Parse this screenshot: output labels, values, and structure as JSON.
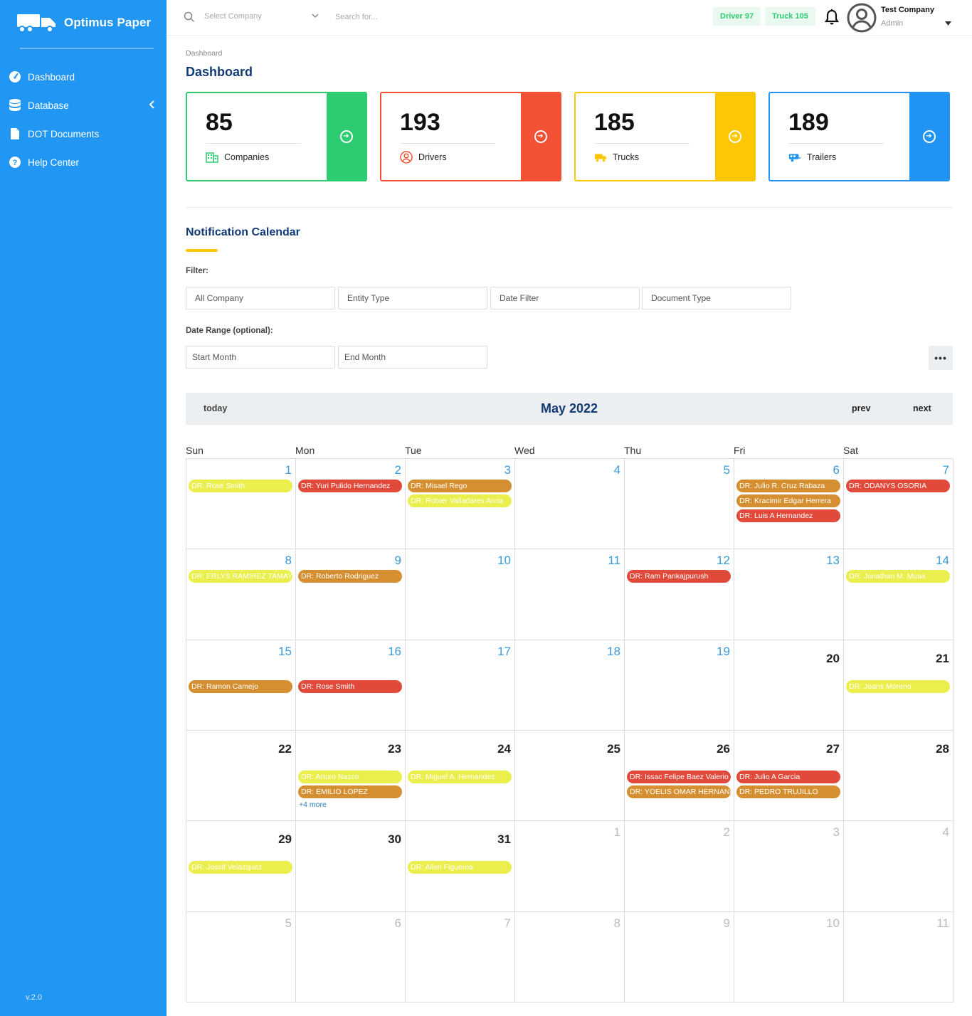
{
  "sidebar": {
    "brand": "Optimus Paper",
    "items": [
      {
        "label": "Dashboard",
        "icon": "gauge-icon"
      },
      {
        "label": "Database",
        "icon": "database-icon"
      },
      {
        "label": "DOT Documents",
        "icon": "document-icon"
      },
      {
        "label": "Help Center",
        "icon": "question-circle-icon"
      }
    ],
    "version": "v.2.0"
  },
  "topbar": {
    "select_company_placeholder": "Select Company",
    "search_placeholder": "Search for...",
    "driver_badge": "Driver 97",
    "truck_badge": "Truck 105",
    "user_name": "Test Company",
    "user_role": "Admin"
  },
  "breadcrumb": "Dashboard",
  "page_title": "Dashboard",
  "stats": [
    {
      "value": "85",
      "label": "Companies",
      "color": "#2ecc71",
      "icon": "building-icon"
    },
    {
      "value": "193",
      "label": "Drivers",
      "color": "#f35134",
      "icon": "user-circle-icon"
    },
    {
      "value": "185",
      "label": "Trucks",
      "color": "#fec703",
      "icon": "truck-icon"
    },
    {
      "value": "189",
      "label": "Trailers",
      "color": "#2193f3",
      "icon": "trailer-icon"
    }
  ],
  "calendar_section": {
    "title": "Notification Calendar",
    "filter_label": "Filter:",
    "filters": [
      "All Company",
      "Entity Type",
      "Date Filter",
      "Document Type"
    ],
    "range_label": "Date Range (optional):",
    "start_month_placeholder": "Start Month",
    "end_month_placeholder": "End Month"
  },
  "calendar": {
    "today_label": "today",
    "title": "May 2022",
    "prev_label": "prev",
    "next_label": "next",
    "day_headers": [
      "Sun",
      "Mon",
      "Tue",
      "Wed",
      "Thu",
      "Fri",
      "Sat"
    ],
    "weeks": [
      [
        {
          "day": "1",
          "style": "blue",
          "events": [
            {
              "text": "DR: Rose Smith",
              "color": "yellow"
            }
          ]
        },
        {
          "day": "2",
          "style": "blue",
          "events": [
            {
              "text": "DR: Yuri Pulido Hernandez",
              "color": "red"
            }
          ]
        },
        {
          "day": "3",
          "style": "blue",
          "events": [
            {
              "text": "DR: Misael Rego",
              "color": "orange"
            },
            {
              "text": "DR: Robier Valladares Arcia",
              "color": "yellow"
            }
          ]
        },
        {
          "day": "4",
          "style": "blue",
          "events": []
        },
        {
          "day": "5",
          "style": "blue",
          "events": []
        },
        {
          "day": "6",
          "style": "blue",
          "events": [
            {
              "text": "DR: Julio R. Cruz Rabaza",
              "color": "orange"
            },
            {
              "text": "DR: Kracimir Edgar Herrera",
              "color": "orange"
            },
            {
              "text": "DR: Luis A Hernandez",
              "color": "red"
            }
          ]
        },
        {
          "day": "7",
          "style": "blue",
          "events": [
            {
              "text": "DR: ODANYS OSORIA",
              "color": "red"
            }
          ]
        }
      ],
      [
        {
          "day": "8",
          "style": "blue",
          "events": [
            {
              "text": "DR: ERLYS RAMIREZ TAMAYO",
              "color": "yellow"
            }
          ]
        },
        {
          "day": "9",
          "style": "blue",
          "events": [
            {
              "text": "DR: Roberto Rodriguez",
              "color": "orange"
            }
          ]
        },
        {
          "day": "10",
          "style": "blue",
          "events": []
        },
        {
          "day": "11",
          "style": "blue",
          "events": []
        },
        {
          "day": "12",
          "style": "blue",
          "events": [
            {
              "text": "DR: Ram Pankajpurush",
              "color": "red"
            }
          ]
        },
        {
          "day": "13",
          "style": "blue",
          "events": []
        },
        {
          "day": "14",
          "style": "blue",
          "events": [
            {
              "text": "DR: Jonathan M. Musa",
              "color": "yellow"
            }
          ]
        }
      ],
      [
        {
          "day": "15",
          "style": "blue",
          "events": [
            {
              "text": "DR: Ramon Camejo",
              "color": "orange"
            }
          ]
        },
        {
          "day": "16",
          "style": "blue",
          "events": [
            {
              "text": "DR: Rose Smith",
              "color": "red"
            }
          ]
        },
        {
          "day": "17",
          "style": "blue",
          "events": []
        },
        {
          "day": "18",
          "style": "blue",
          "events": []
        },
        {
          "day": "19",
          "style": "blue",
          "events": []
        },
        {
          "day": "20",
          "style": "dark",
          "events": []
        },
        {
          "day": "21",
          "style": "dark",
          "events": [
            {
              "text": "DR: Joans Moreno",
              "color": "yellow"
            }
          ]
        }
      ],
      [
        {
          "day": "22",
          "style": "dark",
          "events": []
        },
        {
          "day": "23",
          "style": "dark",
          "events": [
            {
              "text": "DR: Arturo Nazco",
              "color": "yellow"
            },
            {
              "text": "DR: EMILIO LOPEZ",
              "color": "orange"
            }
          ],
          "more": "+4 more"
        },
        {
          "day": "24",
          "style": "dark",
          "events": [
            {
              "text": "DR: Miguel A. Hernandez",
              "color": "yellow"
            }
          ]
        },
        {
          "day": "25",
          "style": "dark",
          "events": []
        },
        {
          "day": "26",
          "style": "dark",
          "events": [
            {
              "text": "DR: Issac Felipe Baez Valerio",
              "color": "red"
            },
            {
              "text": "DR: YOELIS OMAR HERNANDEZ",
              "color": "orange"
            }
          ]
        },
        {
          "day": "27",
          "style": "dark",
          "events": [
            {
              "text": "DR: Julio A Garcia",
              "color": "red"
            },
            {
              "text": "DR: PEDRO TRUJILLO",
              "color": "orange"
            }
          ]
        },
        {
          "day": "28",
          "style": "dark",
          "events": []
        }
      ],
      [
        {
          "day": "29",
          "style": "dark",
          "events": [
            {
              "text": "DR: Jossif Velazquez",
              "color": "yellow"
            }
          ]
        },
        {
          "day": "30",
          "style": "dark",
          "events": []
        },
        {
          "day": "31",
          "style": "dark",
          "events": [
            {
              "text": "DR: Allen Figueroa",
              "color": "yellow"
            }
          ]
        },
        {
          "day": "1",
          "style": "grey",
          "events": []
        },
        {
          "day": "2",
          "style": "grey",
          "events": []
        },
        {
          "day": "3",
          "style": "grey",
          "events": []
        },
        {
          "day": "4",
          "style": "grey",
          "events": []
        }
      ],
      [
        {
          "day": "5",
          "style": "grey",
          "events": []
        },
        {
          "day": "6",
          "style": "grey",
          "events": []
        },
        {
          "day": "7",
          "style": "grey",
          "events": []
        },
        {
          "day": "8",
          "style": "grey",
          "events": []
        },
        {
          "day": "9",
          "style": "grey",
          "events": []
        },
        {
          "day": "10",
          "style": "grey",
          "events": []
        },
        {
          "day": "11",
          "style": "grey",
          "events": []
        }
      ]
    ]
  }
}
